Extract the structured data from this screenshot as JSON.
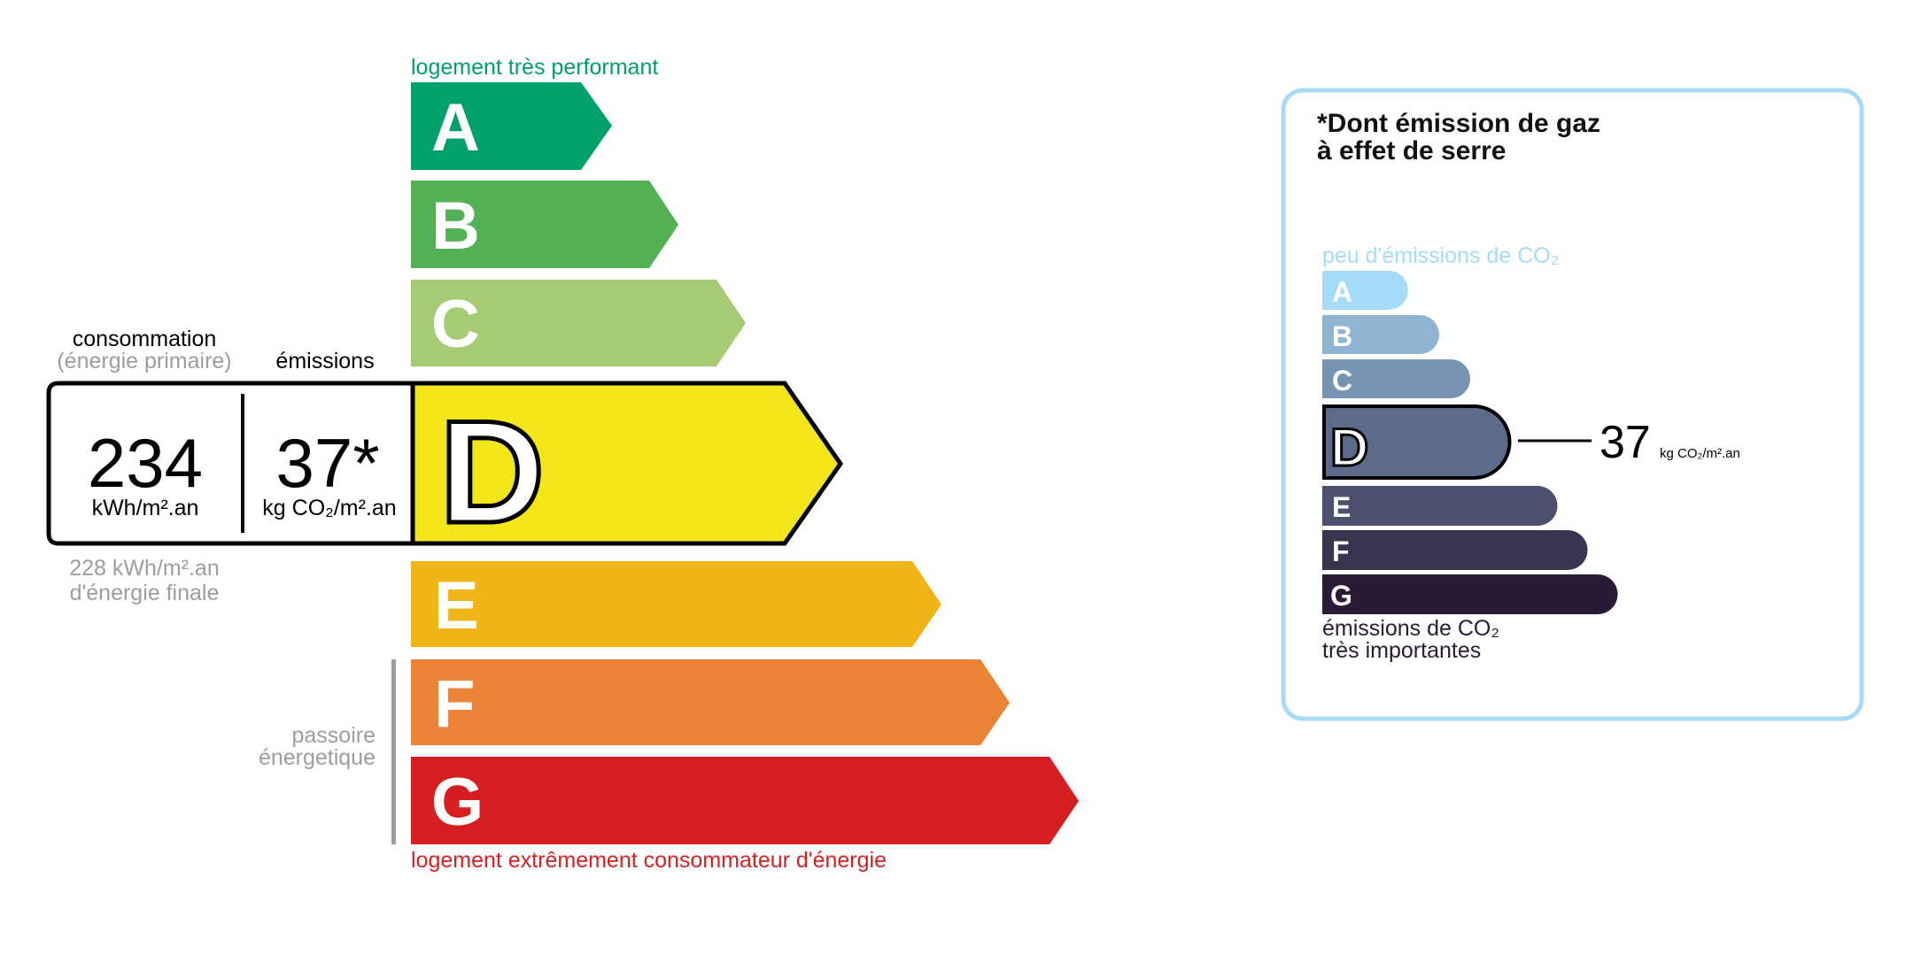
{
  "energy_label": {
    "top_label": "logement très performant",
    "bottom_label": "logement extrêmement consommateur d'énergie",
    "passoire_line1": "passoire",
    "passoire_line2": "énergetique",
    "classes": [
      {
        "letter": "A",
        "color": "#00a06a"
      },
      {
        "letter": "B",
        "color": "#52b153"
      },
      {
        "letter": "C",
        "color": "#a5cc74"
      },
      {
        "letter": "D",
        "color": "#f2e61b"
      },
      {
        "letter": "E",
        "color": "#f0b418"
      },
      {
        "letter": "F",
        "color": "#eb8235"
      },
      {
        "letter": "G",
        "color": "#d71f21"
      }
    ],
    "current_class": "D",
    "consumption_heading": "consommation",
    "consumption_subheading": "(énergie primaire)",
    "emissions_heading": "émissions",
    "consumption_value": "234",
    "consumption_unit": "kWh/m².an",
    "emissions_value": "37*",
    "emissions_unit": "kg CO₂/m².an",
    "final_energy_value": "228 kWh/m².an",
    "final_energy_label": "d'énergie finale"
  },
  "ghg_panel": {
    "title_line1": "*Dont émission de gaz",
    "title_line2": "à effet de serre",
    "top_label": "peu d'émissions de CO₂",
    "bottom_label_line1": "émissions de CO₂",
    "bottom_label_line2": "très importantes",
    "classes": [
      {
        "letter": "A",
        "color": "#a4dbf8"
      },
      {
        "letter": "B",
        "color": "#8fb4d3"
      },
      {
        "letter": "C",
        "color": "#7794b3"
      },
      {
        "letter": "D",
        "color": "#5d6b8b"
      },
      {
        "letter": "E",
        "color": "#4c4f6d"
      },
      {
        "letter": "F",
        "color": "#393551"
      },
      {
        "letter": "G",
        "color": "#291b36"
      }
    ],
    "current_class": "D",
    "value": "37",
    "unit": "kg CO₂/m².an",
    "border_color": "#a8daf5"
  }
}
